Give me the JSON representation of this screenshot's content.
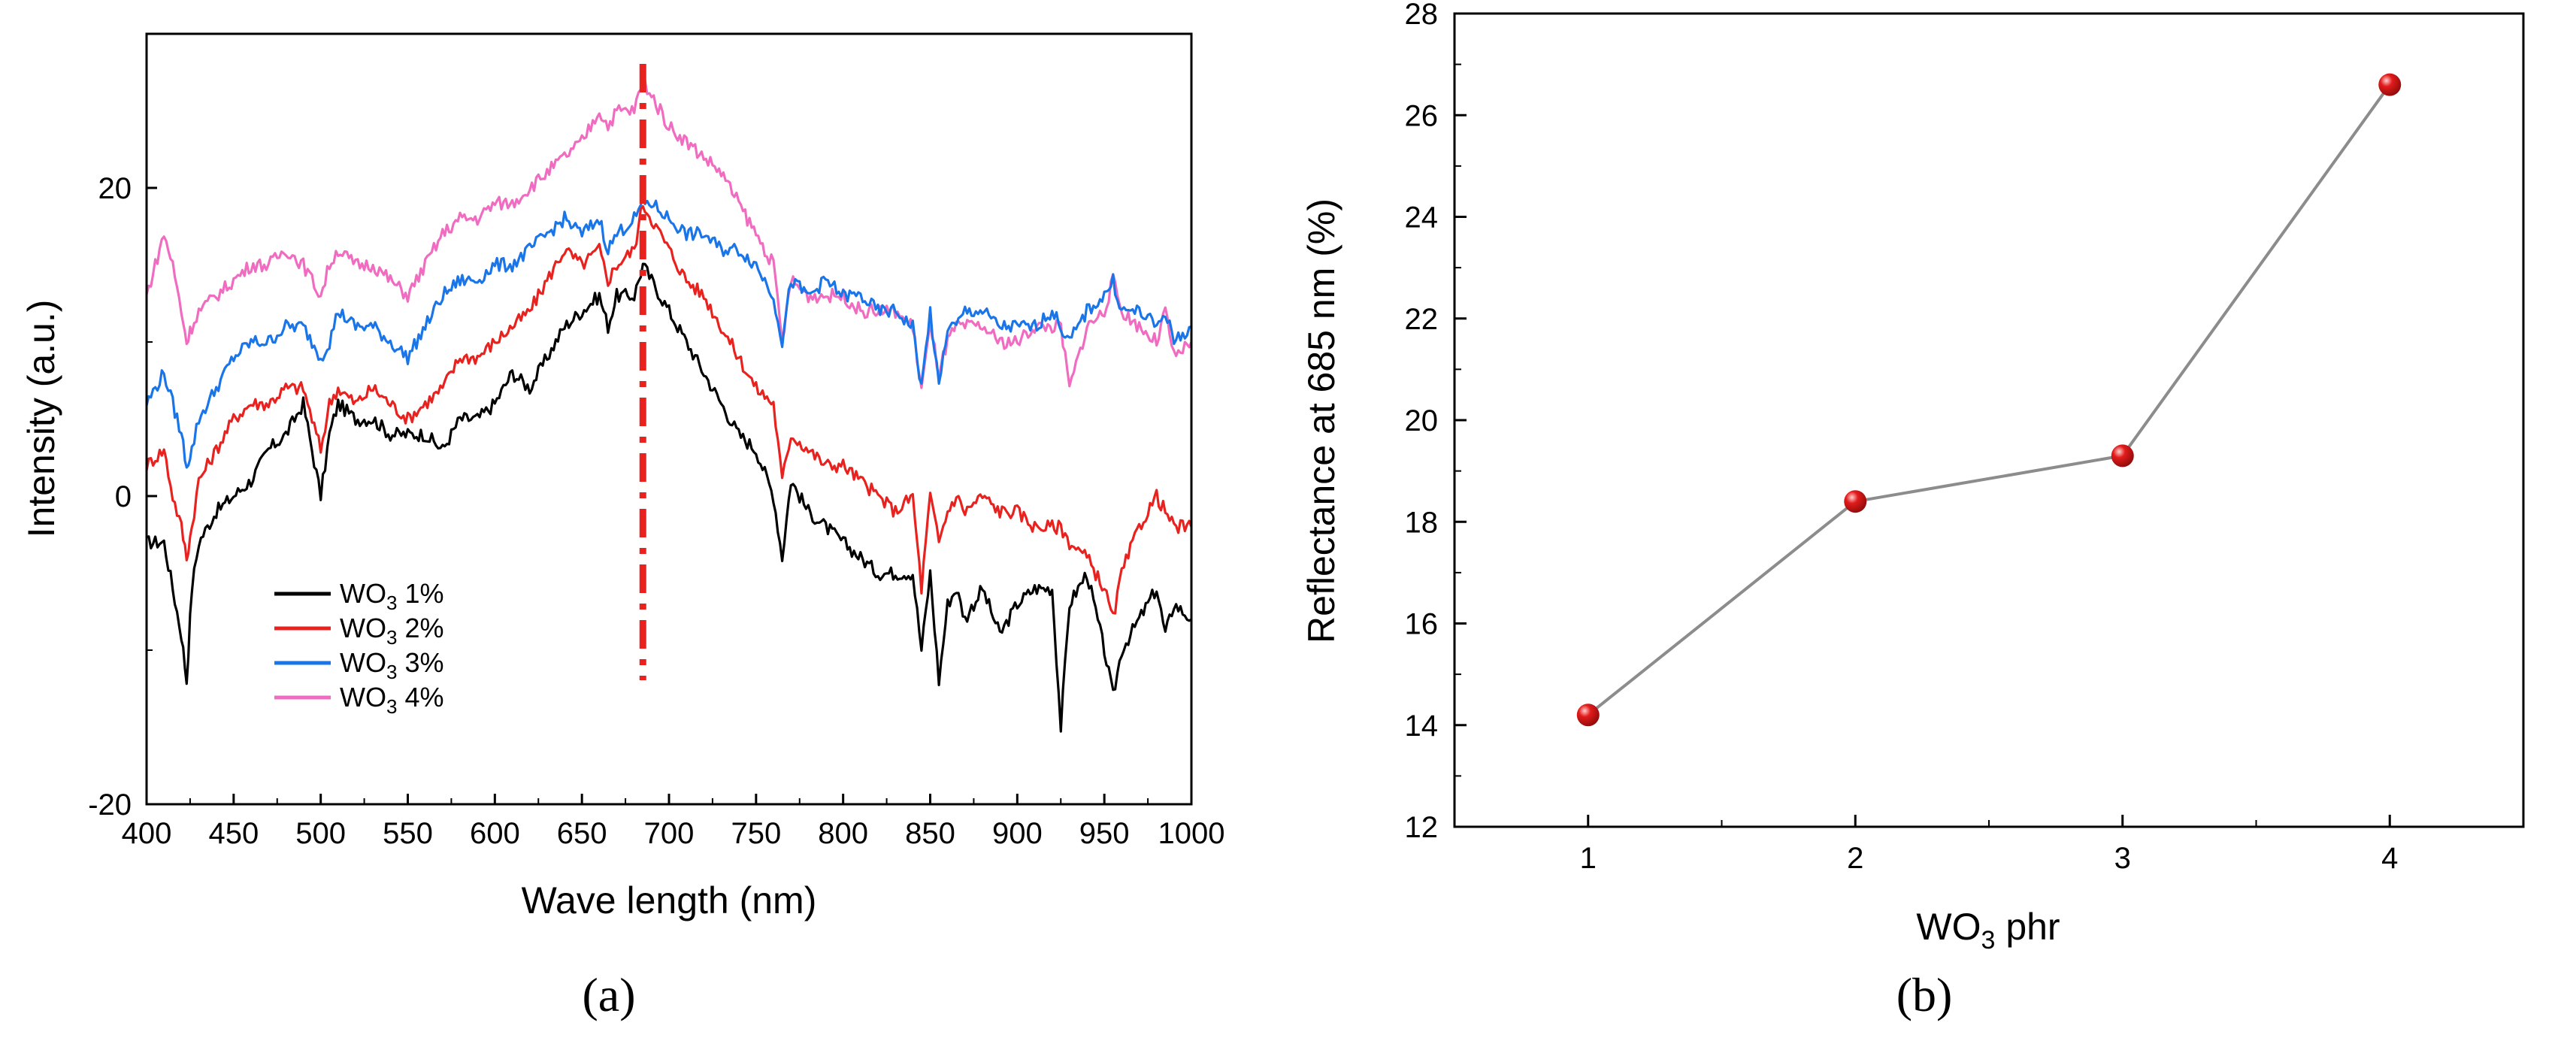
{
  "chart_data": [
    {
      "type": "line",
      "panel_label": "(a)",
      "xlabel": "Wave length (nm)",
      "ylabel": "Intensity (a.u.)",
      "xlim": [
        400,
        1000
      ],
      "ylim": [
        -20,
        30
      ],
      "xticks": [
        400,
        450,
        500,
        550,
        600,
        650,
        700,
        750,
        800,
        850,
        900,
        950,
        1000
      ],
      "yticks": [
        -20,
        0,
        20
      ],
      "reference_line": {
        "x": 685,
        "style": "dash-dot",
        "color": "#e8221f"
      },
      "legend": {
        "placement": "bottom-left"
      },
      "x": [
        400,
        410,
        415,
        420,
        423,
        426,
        430,
        440,
        450,
        460,
        470,
        480,
        490,
        495,
        500,
        505,
        510,
        520,
        530,
        540,
        550,
        560,
        570,
        580,
        590,
        600,
        610,
        620,
        630,
        640,
        650,
        660,
        665,
        670,
        680,
        685,
        690,
        700,
        710,
        720,
        730,
        740,
        750,
        760,
        765,
        770,
        780,
        790,
        800,
        810,
        820,
        830,
        840,
        845,
        850,
        855,
        860,
        865,
        870,
        880,
        890,
        900,
        910,
        920,
        925,
        930,
        940,
        950,
        955,
        960,
        970,
        980,
        985,
        990,
        1000
      ],
      "series": [
        {
          "name": "WO3 1%",
          "color": "#000000",
          "values": [
            -3,
            -3,
            -6,
            -9,
            -12,
            -6,
            -3,
            -1,
            0,
            1,
            3,
            4,
            6,
            3,
            0,
            4,
            6,
            5,
            5,
            4,
            4,
            4,
            3,
            5,
            5,
            6,
            8,
            7,
            9,
            11,
            12,
            13,
            11,
            13,
            13,
            15,
            14,
            12,
            10,
            8,
            6,
            4,
            3,
            0,
            -4,
            1,
            -1,
            -2,
            -3,
            -4,
            -5,
            -5,
            -5,
            -10,
            -5,
            -12,
            -7,
            -6,
            -8,
            -6,
            -9,
            -7,
            -6,
            -6,
            -15,
            -7,
            -5,
            -10,
            -13,
            -10,
            -8,
            -6,
            -9,
            -7,
            -8
          ]
        },
        {
          "name": "WO3 2%",
          "color": "#e8221f",
          "values": [
            2,
            3,
            0,
            -2,
            -4,
            -2,
            1,
            3,
            5,
            6,
            6,
            7,
            7,
            5,
            3,
            6,
            7,
            6,
            7,
            6,
            5,
            6,
            7,
            9,
            9,
            10,
            11,
            12,
            14,
            16,
            15,
            16,
            14,
            15,
            16,
            19,
            18,
            16,
            14,
            13,
            11,
            9,
            7,
            6,
            1,
            4,
            3,
            2,
            2,
            1,
            0,
            -1,
            0,
            -6,
            0,
            -3,
            -1,
            0,
            -1,
            0,
            -1,
            -1,
            -2,
            -2,
            -2,
            -3,
            -4,
            -6,
            -8,
            -5,
            -2,
            0,
            -1,
            -2,
            -2
          ]
        },
        {
          "name": "WO3 3%",
          "color": "#1a75e8",
          "values": [
            6,
            8,
            6,
            4,
            2,
            3,
            5,
            7,
            9,
            10,
            10,
            11,
            11,
            10,
            9,
            10,
            12,
            11,
            11,
            10,
            9,
            11,
            13,
            14,
            14,
            15,
            15,
            16,
            17,
            18,
            17,
            18,
            16,
            17,
            18,
            19,
            19,
            18,
            17,
            17,
            16,
            16,
            15,
            13,
            10,
            14,
            13,
            14,
            13,
            13,
            12,
            12,
            11,
            7,
            12,
            7,
            11,
            11,
            12,
            12,
            11,
            11,
            11,
            12,
            11,
            10,
            12,
            13,
            14,
            12,
            12,
            11,
            12,
            10,
            11
          ]
        },
        {
          "name": "WO3 4%",
          "color": "#f06cc0",
          "values": [
            13,
            17,
            15,
            12,
            10,
            11,
            12,
            13,
            14,
            15,
            15,
            16,
            15,
            14,
            13,
            15,
            16,
            15,
            15,
            14,
            13,
            15,
            17,
            18,
            18,
            19,
            19,
            20,
            21,
            22,
            23,
            25,
            24,
            25,
            25,
            27,
            26,
            24,
            23,
            22,
            21,
            19,
            17,
            15,
            10,
            14,
            13,
            13,
            13,
            12,
            12,
            12,
            11,
            7,
            11,
            8,
            10,
            11,
            11,
            11,
            10,
            10,
            11,
            11,
            11,
            7,
            11,
            12,
            14,
            12,
            11,
            10,
            12,
            9,
            10
          ]
        }
      ]
    },
    {
      "type": "line",
      "panel_label": "(b)",
      "xlabel_main": "WO",
      "xlabel_sub": "3",
      "xlabel_tail": " phr",
      "ylabel": "Reflectance at 685 nm (%)",
      "xlim": [
        0.5,
        4.5
      ],
      "ylim": [
        12,
        28
      ],
      "xticks": [
        1,
        2,
        3,
        4
      ],
      "yticks": [
        12,
        14,
        16,
        18,
        20,
        22,
        24,
        26,
        28
      ],
      "line_color": "#8c8c8c",
      "marker_color": "#e31b1b",
      "x": [
        1,
        2,
        3,
        4
      ],
      "values": [
        14.2,
        18.4,
        19.3,
        26.6
      ]
    }
  ]
}
